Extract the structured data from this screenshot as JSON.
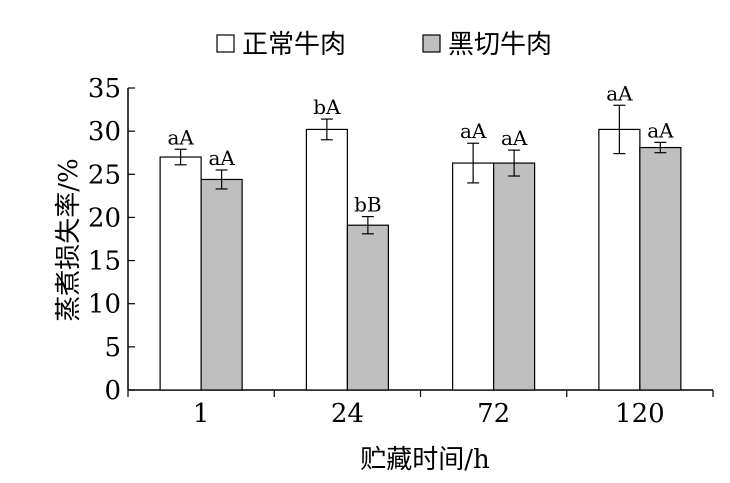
{
  "chart_data": {
    "type": "bar",
    "categories": [
      "1",
      "24",
      "72",
      "120"
    ],
    "series": [
      {
        "name": "正常牛肉",
        "color": "#ffffff",
        "values": [
          27.0,
          30.2,
          26.3,
          30.2
        ],
        "errors": [
          0.9,
          1.2,
          2.3,
          2.8
        ],
        "labels": [
          "aA",
          "bA",
          "aA",
          "aA"
        ]
      },
      {
        "name": "黑切牛肉",
        "color": "#bfbfbf",
        "values": [
          24.4,
          19.1,
          26.3,
          28.1
        ],
        "errors": [
          1.1,
          1.0,
          1.5,
          0.6
        ],
        "labels": [
          "aA",
          "bB",
          "aA",
          "aA"
        ]
      }
    ],
    "xlabel": "贮藏时间/h",
    "ylabel": "蒸煮损失率/%",
    "ylim": [
      0,
      35
    ],
    "yticks": [
      "0",
      "5",
      "10",
      "15",
      "20",
      "25",
      "30",
      "35"
    ],
    "grid": false,
    "legend_position": "top"
  }
}
